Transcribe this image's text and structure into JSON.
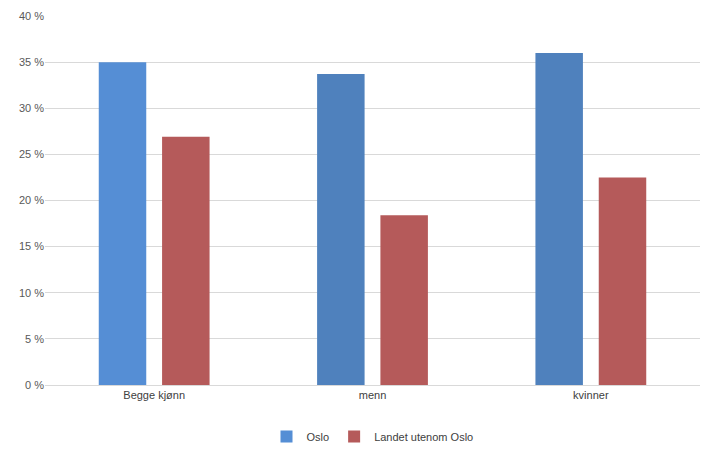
{
  "chart_data": {
    "type": "bar",
    "categories": [
      "Begge kjønn",
      "menn",
      "kvinner"
    ],
    "series": [
      {
        "name": "Oslo",
        "color": "#4f81bd",
        "colors": [
          "#558ed5",
          "#4f81bd",
          "#4f81bd"
        ],
        "values": [
          35,
          33.7,
          36
        ]
      },
      {
        "name": "Landet utenom Oslo",
        "color": "#b55a5a",
        "values": [
          26.9,
          18.4,
          22.5
        ]
      }
    ],
    "ylim": [
      0,
      40
    ],
    "yticks": [
      {
        "value": 0,
        "label": "0 %"
      },
      {
        "value": 5,
        "label": "5 %"
      },
      {
        "value": 10,
        "label": "10 %"
      },
      {
        "value": 15,
        "label": "15 %"
      },
      {
        "value": 20,
        "label": "20 %"
      },
      {
        "value": 25,
        "label": "25 %"
      },
      {
        "value": 30,
        "label": "30 %"
      },
      {
        "value": 35,
        "label": "35 %"
      },
      {
        "value": 40,
        "label": "40 %"
      }
    ],
    "grid": true,
    "legend": "bottom"
  }
}
